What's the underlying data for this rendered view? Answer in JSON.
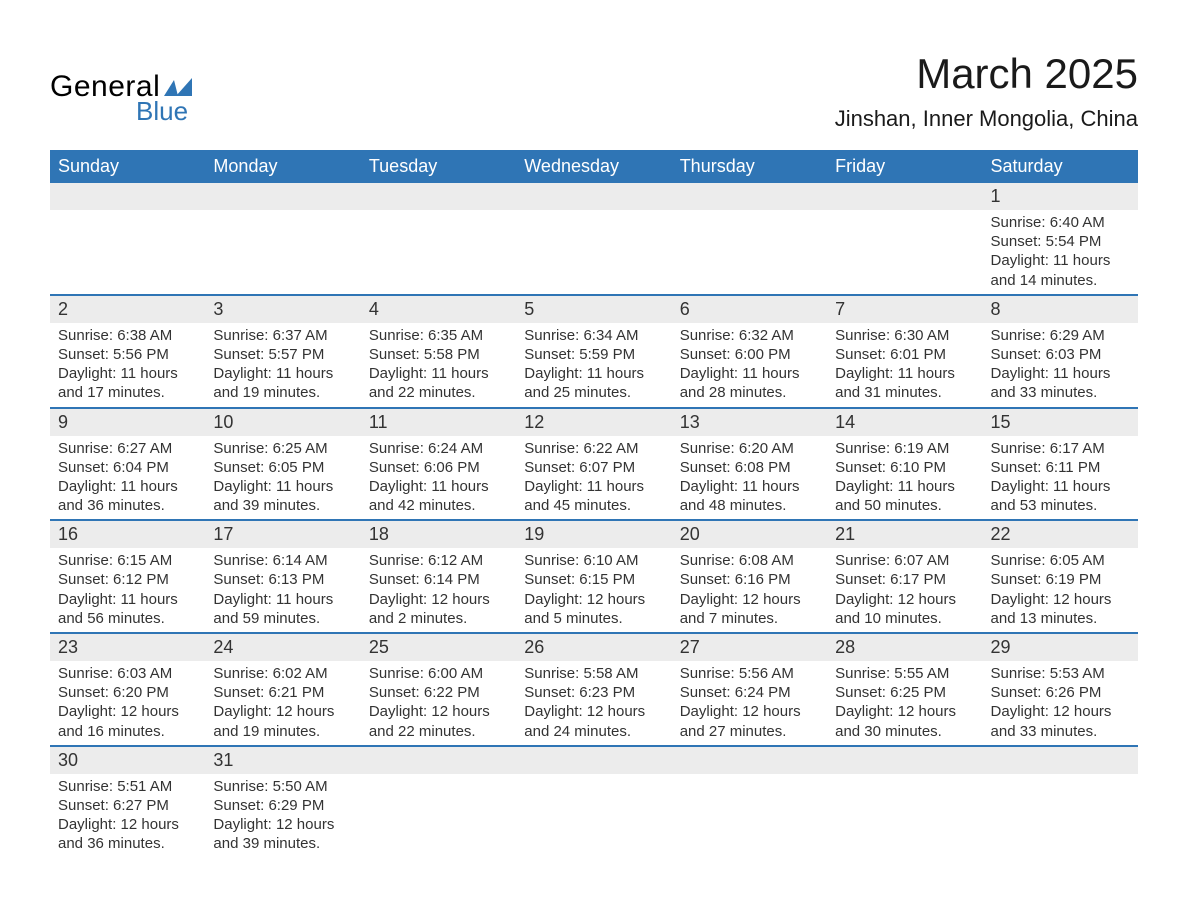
{
  "brand": {
    "line1": "General",
    "line2": "Blue",
    "shape_color": "#2f75b5"
  },
  "title": "March 2025",
  "location": "Jinshan, Inner Mongolia, China",
  "colors": {
    "header_bg": "#2f75b5",
    "header_text": "#ffffff",
    "row_border": "#2f75b5",
    "daynum_bg": "#ececec",
    "text": "#333333",
    "background": "#ffffff"
  },
  "typography": {
    "title_fontsize": 42,
    "location_fontsize": 22,
    "weekday_fontsize": 18,
    "daynum_fontsize": 18,
    "body_fontsize": 15
  },
  "calendar": {
    "type": "table",
    "weekdays": [
      "Sunday",
      "Monday",
      "Tuesday",
      "Wednesday",
      "Thursday",
      "Friday",
      "Saturday"
    ],
    "weeks": [
      [
        null,
        null,
        null,
        null,
        null,
        null,
        {
          "n": "1",
          "sunrise": "Sunrise: 6:40 AM",
          "sunset": "Sunset: 5:54 PM",
          "d1": "Daylight: 11 hours",
          "d2": "and 14 minutes."
        }
      ],
      [
        {
          "n": "2",
          "sunrise": "Sunrise: 6:38 AM",
          "sunset": "Sunset: 5:56 PM",
          "d1": "Daylight: 11 hours",
          "d2": "and 17 minutes."
        },
        {
          "n": "3",
          "sunrise": "Sunrise: 6:37 AM",
          "sunset": "Sunset: 5:57 PM",
          "d1": "Daylight: 11 hours",
          "d2": "and 19 minutes."
        },
        {
          "n": "4",
          "sunrise": "Sunrise: 6:35 AM",
          "sunset": "Sunset: 5:58 PM",
          "d1": "Daylight: 11 hours",
          "d2": "and 22 minutes."
        },
        {
          "n": "5",
          "sunrise": "Sunrise: 6:34 AM",
          "sunset": "Sunset: 5:59 PM",
          "d1": "Daylight: 11 hours",
          "d2": "and 25 minutes."
        },
        {
          "n": "6",
          "sunrise": "Sunrise: 6:32 AM",
          "sunset": "Sunset: 6:00 PM",
          "d1": "Daylight: 11 hours",
          "d2": "and 28 minutes."
        },
        {
          "n": "7",
          "sunrise": "Sunrise: 6:30 AM",
          "sunset": "Sunset: 6:01 PM",
          "d1": "Daylight: 11 hours",
          "d2": "and 31 minutes."
        },
        {
          "n": "8",
          "sunrise": "Sunrise: 6:29 AM",
          "sunset": "Sunset: 6:03 PM",
          "d1": "Daylight: 11 hours",
          "d2": "and 33 minutes."
        }
      ],
      [
        {
          "n": "9",
          "sunrise": "Sunrise: 6:27 AM",
          "sunset": "Sunset: 6:04 PM",
          "d1": "Daylight: 11 hours",
          "d2": "and 36 minutes."
        },
        {
          "n": "10",
          "sunrise": "Sunrise: 6:25 AM",
          "sunset": "Sunset: 6:05 PM",
          "d1": "Daylight: 11 hours",
          "d2": "and 39 minutes."
        },
        {
          "n": "11",
          "sunrise": "Sunrise: 6:24 AM",
          "sunset": "Sunset: 6:06 PM",
          "d1": "Daylight: 11 hours",
          "d2": "and 42 minutes."
        },
        {
          "n": "12",
          "sunrise": "Sunrise: 6:22 AM",
          "sunset": "Sunset: 6:07 PM",
          "d1": "Daylight: 11 hours",
          "d2": "and 45 minutes."
        },
        {
          "n": "13",
          "sunrise": "Sunrise: 6:20 AM",
          "sunset": "Sunset: 6:08 PM",
          "d1": "Daylight: 11 hours",
          "d2": "and 48 minutes."
        },
        {
          "n": "14",
          "sunrise": "Sunrise: 6:19 AM",
          "sunset": "Sunset: 6:10 PM",
          "d1": "Daylight: 11 hours",
          "d2": "and 50 minutes."
        },
        {
          "n": "15",
          "sunrise": "Sunrise: 6:17 AM",
          "sunset": "Sunset: 6:11 PM",
          "d1": "Daylight: 11 hours",
          "d2": "and 53 minutes."
        }
      ],
      [
        {
          "n": "16",
          "sunrise": "Sunrise: 6:15 AM",
          "sunset": "Sunset: 6:12 PM",
          "d1": "Daylight: 11 hours",
          "d2": "and 56 minutes."
        },
        {
          "n": "17",
          "sunrise": "Sunrise: 6:14 AM",
          "sunset": "Sunset: 6:13 PM",
          "d1": "Daylight: 11 hours",
          "d2": "and 59 minutes."
        },
        {
          "n": "18",
          "sunrise": "Sunrise: 6:12 AM",
          "sunset": "Sunset: 6:14 PM",
          "d1": "Daylight: 12 hours",
          "d2": "and 2 minutes."
        },
        {
          "n": "19",
          "sunrise": "Sunrise: 6:10 AM",
          "sunset": "Sunset: 6:15 PM",
          "d1": "Daylight: 12 hours",
          "d2": "and 5 minutes."
        },
        {
          "n": "20",
          "sunrise": "Sunrise: 6:08 AM",
          "sunset": "Sunset: 6:16 PM",
          "d1": "Daylight: 12 hours",
          "d2": "and 7 minutes."
        },
        {
          "n": "21",
          "sunrise": "Sunrise: 6:07 AM",
          "sunset": "Sunset: 6:17 PM",
          "d1": "Daylight: 12 hours",
          "d2": "and 10 minutes."
        },
        {
          "n": "22",
          "sunrise": "Sunrise: 6:05 AM",
          "sunset": "Sunset: 6:19 PM",
          "d1": "Daylight: 12 hours",
          "d2": "and 13 minutes."
        }
      ],
      [
        {
          "n": "23",
          "sunrise": "Sunrise: 6:03 AM",
          "sunset": "Sunset: 6:20 PM",
          "d1": "Daylight: 12 hours",
          "d2": "and 16 minutes."
        },
        {
          "n": "24",
          "sunrise": "Sunrise: 6:02 AM",
          "sunset": "Sunset: 6:21 PM",
          "d1": "Daylight: 12 hours",
          "d2": "and 19 minutes."
        },
        {
          "n": "25",
          "sunrise": "Sunrise: 6:00 AM",
          "sunset": "Sunset: 6:22 PM",
          "d1": "Daylight: 12 hours",
          "d2": "and 22 minutes."
        },
        {
          "n": "26",
          "sunrise": "Sunrise: 5:58 AM",
          "sunset": "Sunset: 6:23 PM",
          "d1": "Daylight: 12 hours",
          "d2": "and 24 minutes."
        },
        {
          "n": "27",
          "sunrise": "Sunrise: 5:56 AM",
          "sunset": "Sunset: 6:24 PM",
          "d1": "Daylight: 12 hours",
          "d2": "and 27 minutes."
        },
        {
          "n": "28",
          "sunrise": "Sunrise: 5:55 AM",
          "sunset": "Sunset: 6:25 PM",
          "d1": "Daylight: 12 hours",
          "d2": "and 30 minutes."
        },
        {
          "n": "29",
          "sunrise": "Sunrise: 5:53 AM",
          "sunset": "Sunset: 6:26 PM",
          "d1": "Daylight: 12 hours",
          "d2": "and 33 minutes."
        }
      ],
      [
        {
          "n": "30",
          "sunrise": "Sunrise: 5:51 AM",
          "sunset": "Sunset: 6:27 PM",
          "d1": "Daylight: 12 hours",
          "d2": "and 36 minutes."
        },
        {
          "n": "31",
          "sunrise": "Sunrise: 5:50 AM",
          "sunset": "Sunset: 6:29 PM",
          "d1": "Daylight: 12 hours",
          "d2": "and 39 minutes."
        },
        null,
        null,
        null,
        null,
        null
      ]
    ]
  }
}
